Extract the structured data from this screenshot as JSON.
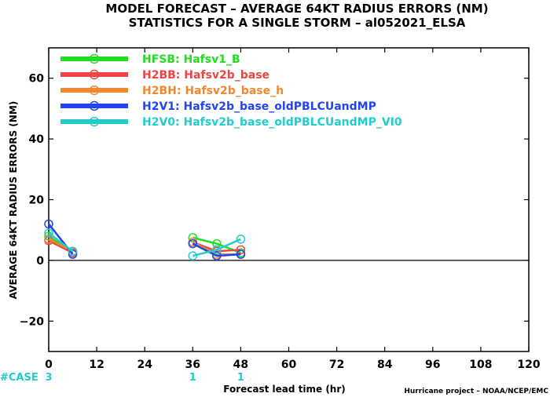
{
  "chart_data": {
    "type": "line",
    "title_line1": "MODEL FORECAST – AVERAGE 64KT RADIUS ERRORS (NM)",
    "title_line2": "STATISTICS FOR A SINGLE STORM – al052021_ELSA",
    "xlabel": "Forecast lead time (hr)",
    "ylabel": "AVERAGE 64KT RADIUS ERRORS (NM)",
    "xlim": [
      0,
      120
    ],
    "ylim": [
      -30,
      70
    ],
    "xticks": [
      0,
      12,
      24,
      36,
      48,
      60,
      72,
      84,
      96,
      108,
      120
    ],
    "yticks": [
      -20,
      0,
      20,
      40,
      60
    ],
    "xtick_labels": [
      "0",
      "12",
      "24",
      "36",
      "48",
      "60",
      "72",
      "84",
      "96",
      "108",
      "120"
    ],
    "ytick_labels": [
      "−20",
      "0",
      "20",
      "40",
      "60"
    ],
    "zero_line": true,
    "legend_position": "top-left",
    "series": [
      {
        "name": "HFSB: Hafsv1_B",
        "color": "#22dd22",
        "segments": [
          [
            [
              0,
              8
            ],
            [
              6,
              2.5
            ]
          ],
          [
            [
              36,
              7.5
            ],
            [
              42,
              5.5
            ],
            [
              48,
              2.5
            ]
          ]
        ]
      },
      {
        "name": "H2BB: Hafsv2b_base",
        "color": "#ee4444",
        "segments": [
          [
            [
              0,
              6.5
            ],
            [
              6,
              2.5
            ]
          ],
          [
            [
              36,
              6
            ],
            [
              42,
              3
            ],
            [
              48,
              3.5
            ]
          ]
        ]
      },
      {
        "name": "H2BH: Hafsv2b_base_h",
        "color": "#f08830",
        "segments": [
          [
            [
              0,
              7
            ],
            [
              6,
              3
            ]
          ],
          [
            [
              36,
              6
            ],
            [
              42,
              2
            ],
            [
              48,
              2
            ]
          ]
        ]
      },
      {
        "name": "H2V1: Hafsv2b_base_oldPBLCUandMP",
        "color": "#2244ee",
        "segments": [
          [
            [
              0,
              12
            ],
            [
              6,
              2
            ]
          ],
          [
            [
              36,
              5.5
            ],
            [
              42,
              1.5
            ],
            [
              48,
              2
            ]
          ]
        ]
      },
      {
        "name": "H2V0: Hafsv2b_base_oldPBLCUandMP_VI0",
        "color": "#22cccc",
        "segments": [
          [
            [
              0,
              9
            ],
            [
              6,
              3
            ]
          ],
          [
            [
              36,
              1.5
            ],
            [
              42,
              3.5
            ],
            [
              48,
              7
            ]
          ]
        ]
      }
    ],
    "cases": {
      "label": "#CASE",
      "entries": [
        {
          "x": 0,
          "n": "3"
        },
        {
          "x": 36,
          "n": "1"
        },
        {
          "x": 48,
          "n": "1"
        }
      ]
    },
    "credit": "Hurricane project – NOAA/NCEP/EMC"
  },
  "colors": {
    "case_label": "#22cccc",
    "zero_line": "#000000"
  }
}
